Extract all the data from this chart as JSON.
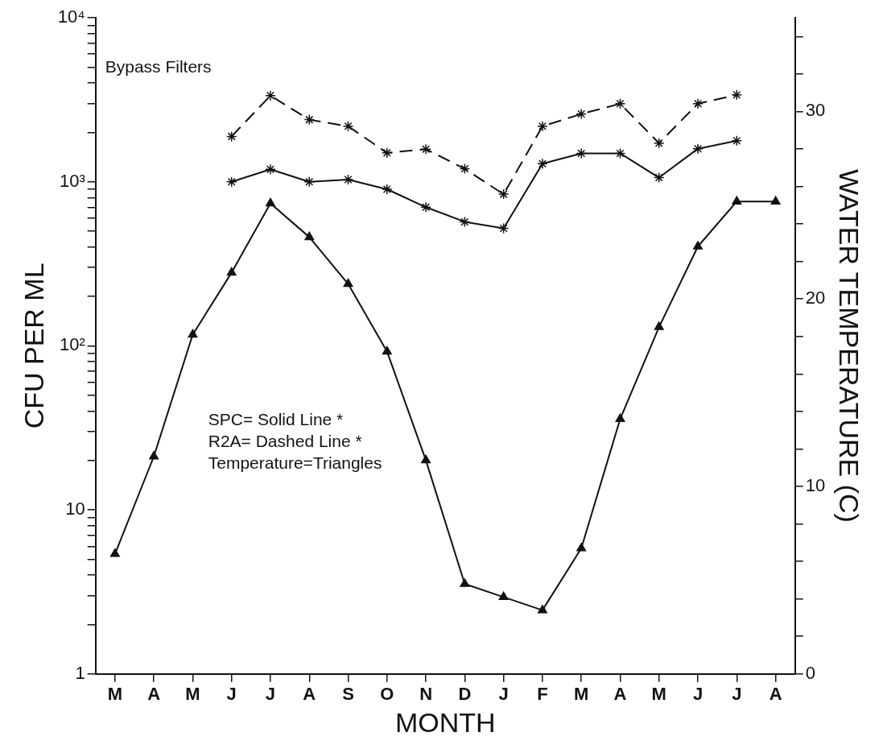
{
  "chart_data": {
    "type": "line",
    "xlabel": "MONTH",
    "ylabel": "CFU PER ML",
    "y2label": "WATER TEMPERATURE (C)",
    "categories": [
      "M",
      "A",
      "M",
      "J",
      "J",
      "A",
      "S",
      "O",
      "N",
      "D",
      "J",
      "F",
      "M",
      "A",
      "M",
      "J",
      "J",
      "A"
    ],
    "series": [
      {
        "color": "#111111",
        "marker": "cross",
        "line_style": "solid",
        "values": [
          null,
          null,
          null,
          1000,
          1190,
          1000,
          1030,
          900,
          700,
          570,
          520,
          1290,
          1490,
          1490,
          1060,
          1590,
          1780,
          null
        ]
      },
      {
        "color": "#111111",
        "marker": "cross",
        "line_style": "dashed",
        "values": [
          null,
          null,
          null,
          1890,
          3350,
          2390,
          2180,
          1500,
          1580,
          1200,
          840,
          2180,
          2590,
          2990,
          1720,
          2990,
          3390,
          null
        ]
      },
      {
        "color": "#111111",
        "marker": "triangle",
        "line_style": "solid",
        "axis": "y2",
        "values": [
          6.4,
          11.6,
          18.1,
          21.4,
          25.1,
          23.3,
          20.8,
          17.2,
          11.4,
          4.8,
          4.1,
          3.4,
          6.7,
          13.6,
          18.5,
          22.8,
          25.2,
          25.2
        ]
      }
    ],
    "log": "y",
    "ylim": [
      1,
      10000
    ],
    "yticks": [
      1,
      {
        "value": 2,
        "label": null
      },
      {
        "value": 3,
        "label": null
      },
      {
        "value": 4,
        "label": null
      },
      {
        "value": 5,
        "label": null
      },
      {
        "value": 6,
        "label": null
      },
      {
        "value": 7,
        "label": null
      },
      {
        "value": 8,
        "label": null
      },
      {
        "value": 9,
        "label": null
      },
      10,
      {
        "value": 20,
        "label": null
      },
      {
        "value": 30,
        "label": null
      },
      {
        "value": 40,
        "label": null
      },
      {
        "value": 50,
        "label": null
      },
      {
        "value": 60,
        "label": null
      },
      {
        "value": 70,
        "label": null
      },
      {
        "value": 80,
        "label": null
      },
      {
        "value": 90,
        "label": null
      },
      {
        "value": 100,
        "label": "10²"
      },
      {
        "value": 200,
        "label": null
      },
      {
        "value": 300,
        "label": null
      },
      {
        "value": 400,
        "label": null
      },
      {
        "value": 500,
        "label": null
      },
      {
        "value": 600,
        "label": null
      },
      {
        "value": 700,
        "label": null
      },
      {
        "value": 800,
        "label": null
      },
      {
        "value": 900,
        "label": null
      },
      {
        "value": 1000,
        "label": "10³"
      },
      {
        "value": 2000,
        "label": null
      },
      {
        "value": 3000,
        "label": null
      },
      {
        "value": 4000,
        "label": null
      },
      {
        "value": 5000,
        "label": null
      },
      {
        "value": 6000,
        "label": null
      },
      {
        "value": 7000,
        "label": null
      },
      {
        "value": 8000,
        "label": null
      },
      {
        "value": 9000,
        "label": null
      },
      {
        "value": 10000,
        "label": "10⁴"
      }
    ],
    "y2lim": [
      0,
      35
    ],
    "y2ticks": [
      0,
      {
        "value": 2,
        "label": null
      },
      {
        "value": 4,
        "label": null
      },
      {
        "value": 6,
        "label": null
      },
      {
        "value": 8,
        "label": null
      },
      10,
      {
        "value": 12,
        "label": null
      },
      {
        "value": 14,
        "label": null
      },
      {
        "value": 16,
        "label": null
      },
      {
        "value": 18,
        "label": null
      },
      20,
      {
        "value": 22,
        "label": null
      },
      {
        "value": 24,
        "label": null
      },
      {
        "value": 26,
        "label": null
      },
      {
        "value": 28,
        "label": null
      },
      30,
      {
        "value": 32,
        "label": null
      },
      {
        "value": 34,
        "label": null
      }
    ],
    "grid": false,
    "legend": false,
    "annotations": [
      "Bypass Filters",
      "SPC= Solid Line *",
      "R2A= Dashed Line *",
      "Temperature=Triangles"
    ]
  }
}
